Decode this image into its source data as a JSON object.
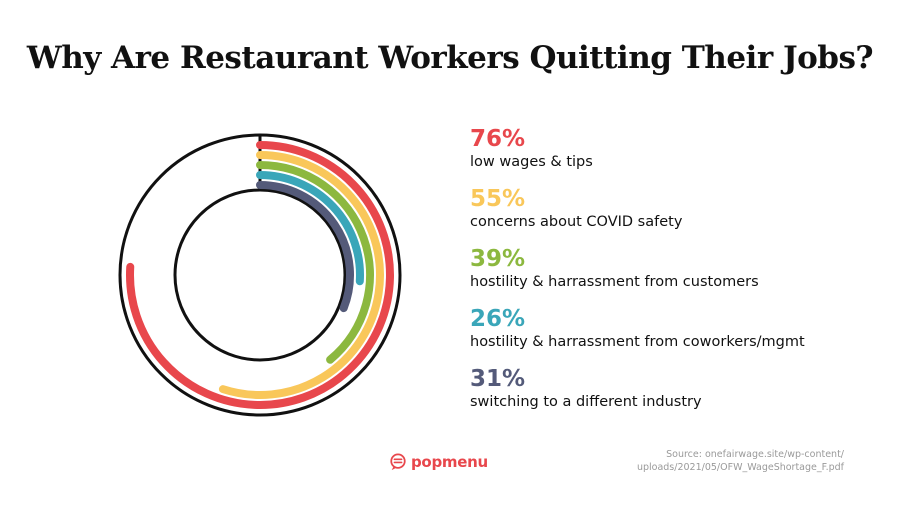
{
  "title": "Why Are Restaurant Workers Quitting Their Jobs?",
  "chart_data": {
    "type": "radial-bar",
    "series": [
      {
        "name": "low wages & tips",
        "value": 76,
        "label": "76%",
        "color": "#e8474c"
      },
      {
        "name": "concerns about COVID safety",
        "value": 55,
        "label": "55%",
        "color": "#f9c75a"
      },
      {
        "name": "hostility & harrassment from customers",
        "value": 39,
        "label": "39%",
        "color": "#8cb83f"
      },
      {
        "name": "hostility & harrassment from coworkers/mgmt",
        "value": 26,
        "label": "26%",
        "color": "#3aa6b9"
      },
      {
        "name": "switching to a different industry",
        "value": 31,
        "label": "31%",
        "color": "#545a79"
      }
    ],
    "max": 100
  },
  "brand": {
    "name": "popmenu",
    "color": "#e8474c"
  },
  "source": {
    "line1": "Source: onefairwage.site/wp-content/",
    "line2": "uploads/2021/05/OFW_WageShortage_F.pdf"
  }
}
